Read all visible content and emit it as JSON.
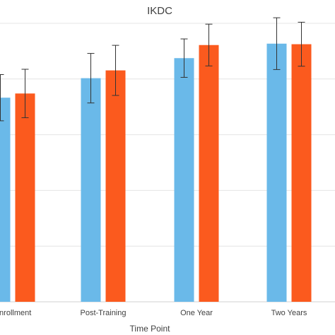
{
  "chart_data": {
    "type": "bar",
    "title": "IKDC",
    "xlabel": "Time Point",
    "ylabel": "",
    "categories": [
      "Enrollment",
      "Post-Training",
      "One Year",
      "Two Years"
    ],
    "ylim": [
      0,
      100
    ],
    "grid": true,
    "gridline_values": [
      0,
      20,
      40,
      60,
      80,
      100
    ],
    "colors": [
      "#6ab9e9",
      "#fb5a1e"
    ],
    "series": [
      {
        "values": [
          73.3,
          80.3,
          87.5,
          92.7
        ],
        "error": [
          8.3,
          8.9,
          6.9,
          9.3
        ]
      },
      {
        "values": [
          74.8,
          83.1,
          92.2,
          92.5
        ],
        "error": [
          8.7,
          9.0,
          7.5,
          7.9
        ]
      }
    ]
  }
}
